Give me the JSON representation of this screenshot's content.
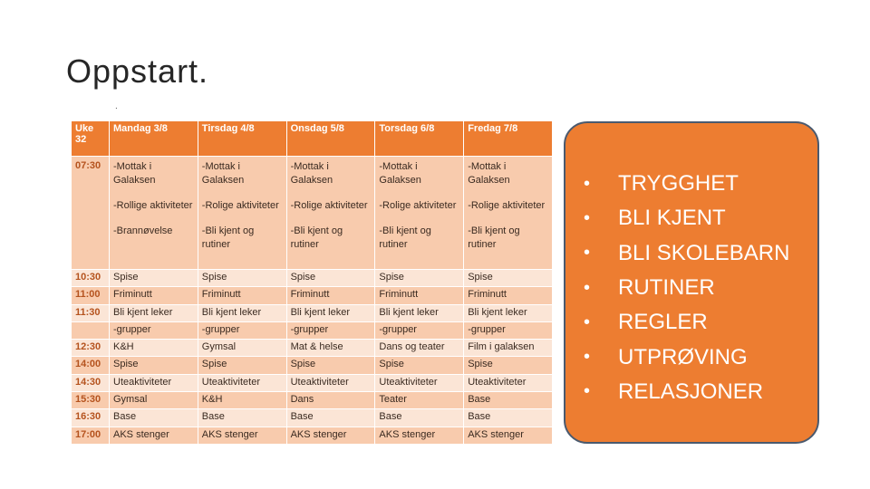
{
  "slide": {
    "title": "Oppstart.",
    "dot": "."
  },
  "schedule": {
    "headers": [
      "Uke 32",
      "Mandag 3/8",
      "Tirsdag 4/8",
      "Onsdag 5/8",
      "Torsdag 6/8",
      "Fredag 7/8"
    ],
    "rows": [
      {
        "time": "07:30",
        "cells": [
          [
            "-Mottak i Galaksen",
            "-Rollige aktiviteter",
            "-Brannøvelse"
          ],
          [
            "-Mottak i Galaksen",
            "-Rolige aktiviteter",
            "-Bli kjent og rutiner"
          ],
          [
            "-Mottak i Galaksen",
            "-Rolige aktiviteter",
            "-Bli kjent og rutiner"
          ],
          [
            "-Mottak i Galaksen",
            "-Rolige aktiviteter",
            "-Bli kjent og rutiner"
          ],
          [
            "-Mottak i Galaksen",
            "-Rolige aktiviteter",
            "-Bli kjent og rutiner"
          ]
        ]
      },
      {
        "time": "10:30",
        "cells": [
          "Spise",
          "Spise",
          "Spise",
          "Spise",
          "Spise"
        ]
      },
      {
        "time": "11:00",
        "cells": [
          "Friminutt",
          "Friminutt",
          "Friminutt",
          "Friminutt",
          "Friminutt"
        ]
      },
      {
        "time": "11:30",
        "cells": [
          "Bli kjent leker",
          "Bli kjent leker",
          "Bli kjent leker",
          "Bli kjent leker",
          "Bli kjent leker"
        ]
      },
      {
        "time": "",
        "cells": [
          "-grupper",
          "-grupper",
          "-grupper",
          "-grupper",
          "-grupper"
        ]
      },
      {
        "time": "12:30",
        "cells": [
          "K&H",
          "Gymsal",
          "Mat & helse",
          "Dans og teater",
          "Film i galaksen"
        ]
      },
      {
        "time": "14:00",
        "cells": [
          "Spise",
          "Spise",
          "Spise",
          "Spise",
          "Spise"
        ]
      },
      {
        "time": "14:30",
        "cells": [
          "Uteaktiviteter",
          "Uteaktiviteter",
          "Uteaktiviteter",
          "Uteaktiviteter",
          "Uteaktiviteter"
        ]
      },
      {
        "time": "15:30",
        "cells": [
          "Gymsal",
          "K&H",
          "Dans",
          "Teater",
          "Base"
        ]
      },
      {
        "time": "16:30",
        "cells": [
          "Base",
          "Base",
          "Base",
          "Base",
          "Base"
        ]
      },
      {
        "time": "17:00",
        "cells": [
          "AKS stenger",
          "AKS stenger",
          "AKS stenger",
          "AKS stenger",
          "AKS stenger"
        ]
      }
    ]
  },
  "goals": {
    "bullet": "•",
    "items": [
      "TRYGGHET",
      "BLI KJENT",
      "BLI SKOLEBARN",
      "RUTINER",
      "REGLER",
      "UTPRØVING",
      "RELASJONER"
    ]
  },
  "colors": {
    "accent": "#ed7d31",
    "row_dark": "#f8cbad",
    "row_light": "#fbe5d6",
    "box_border": "#4a5a6f"
  }
}
